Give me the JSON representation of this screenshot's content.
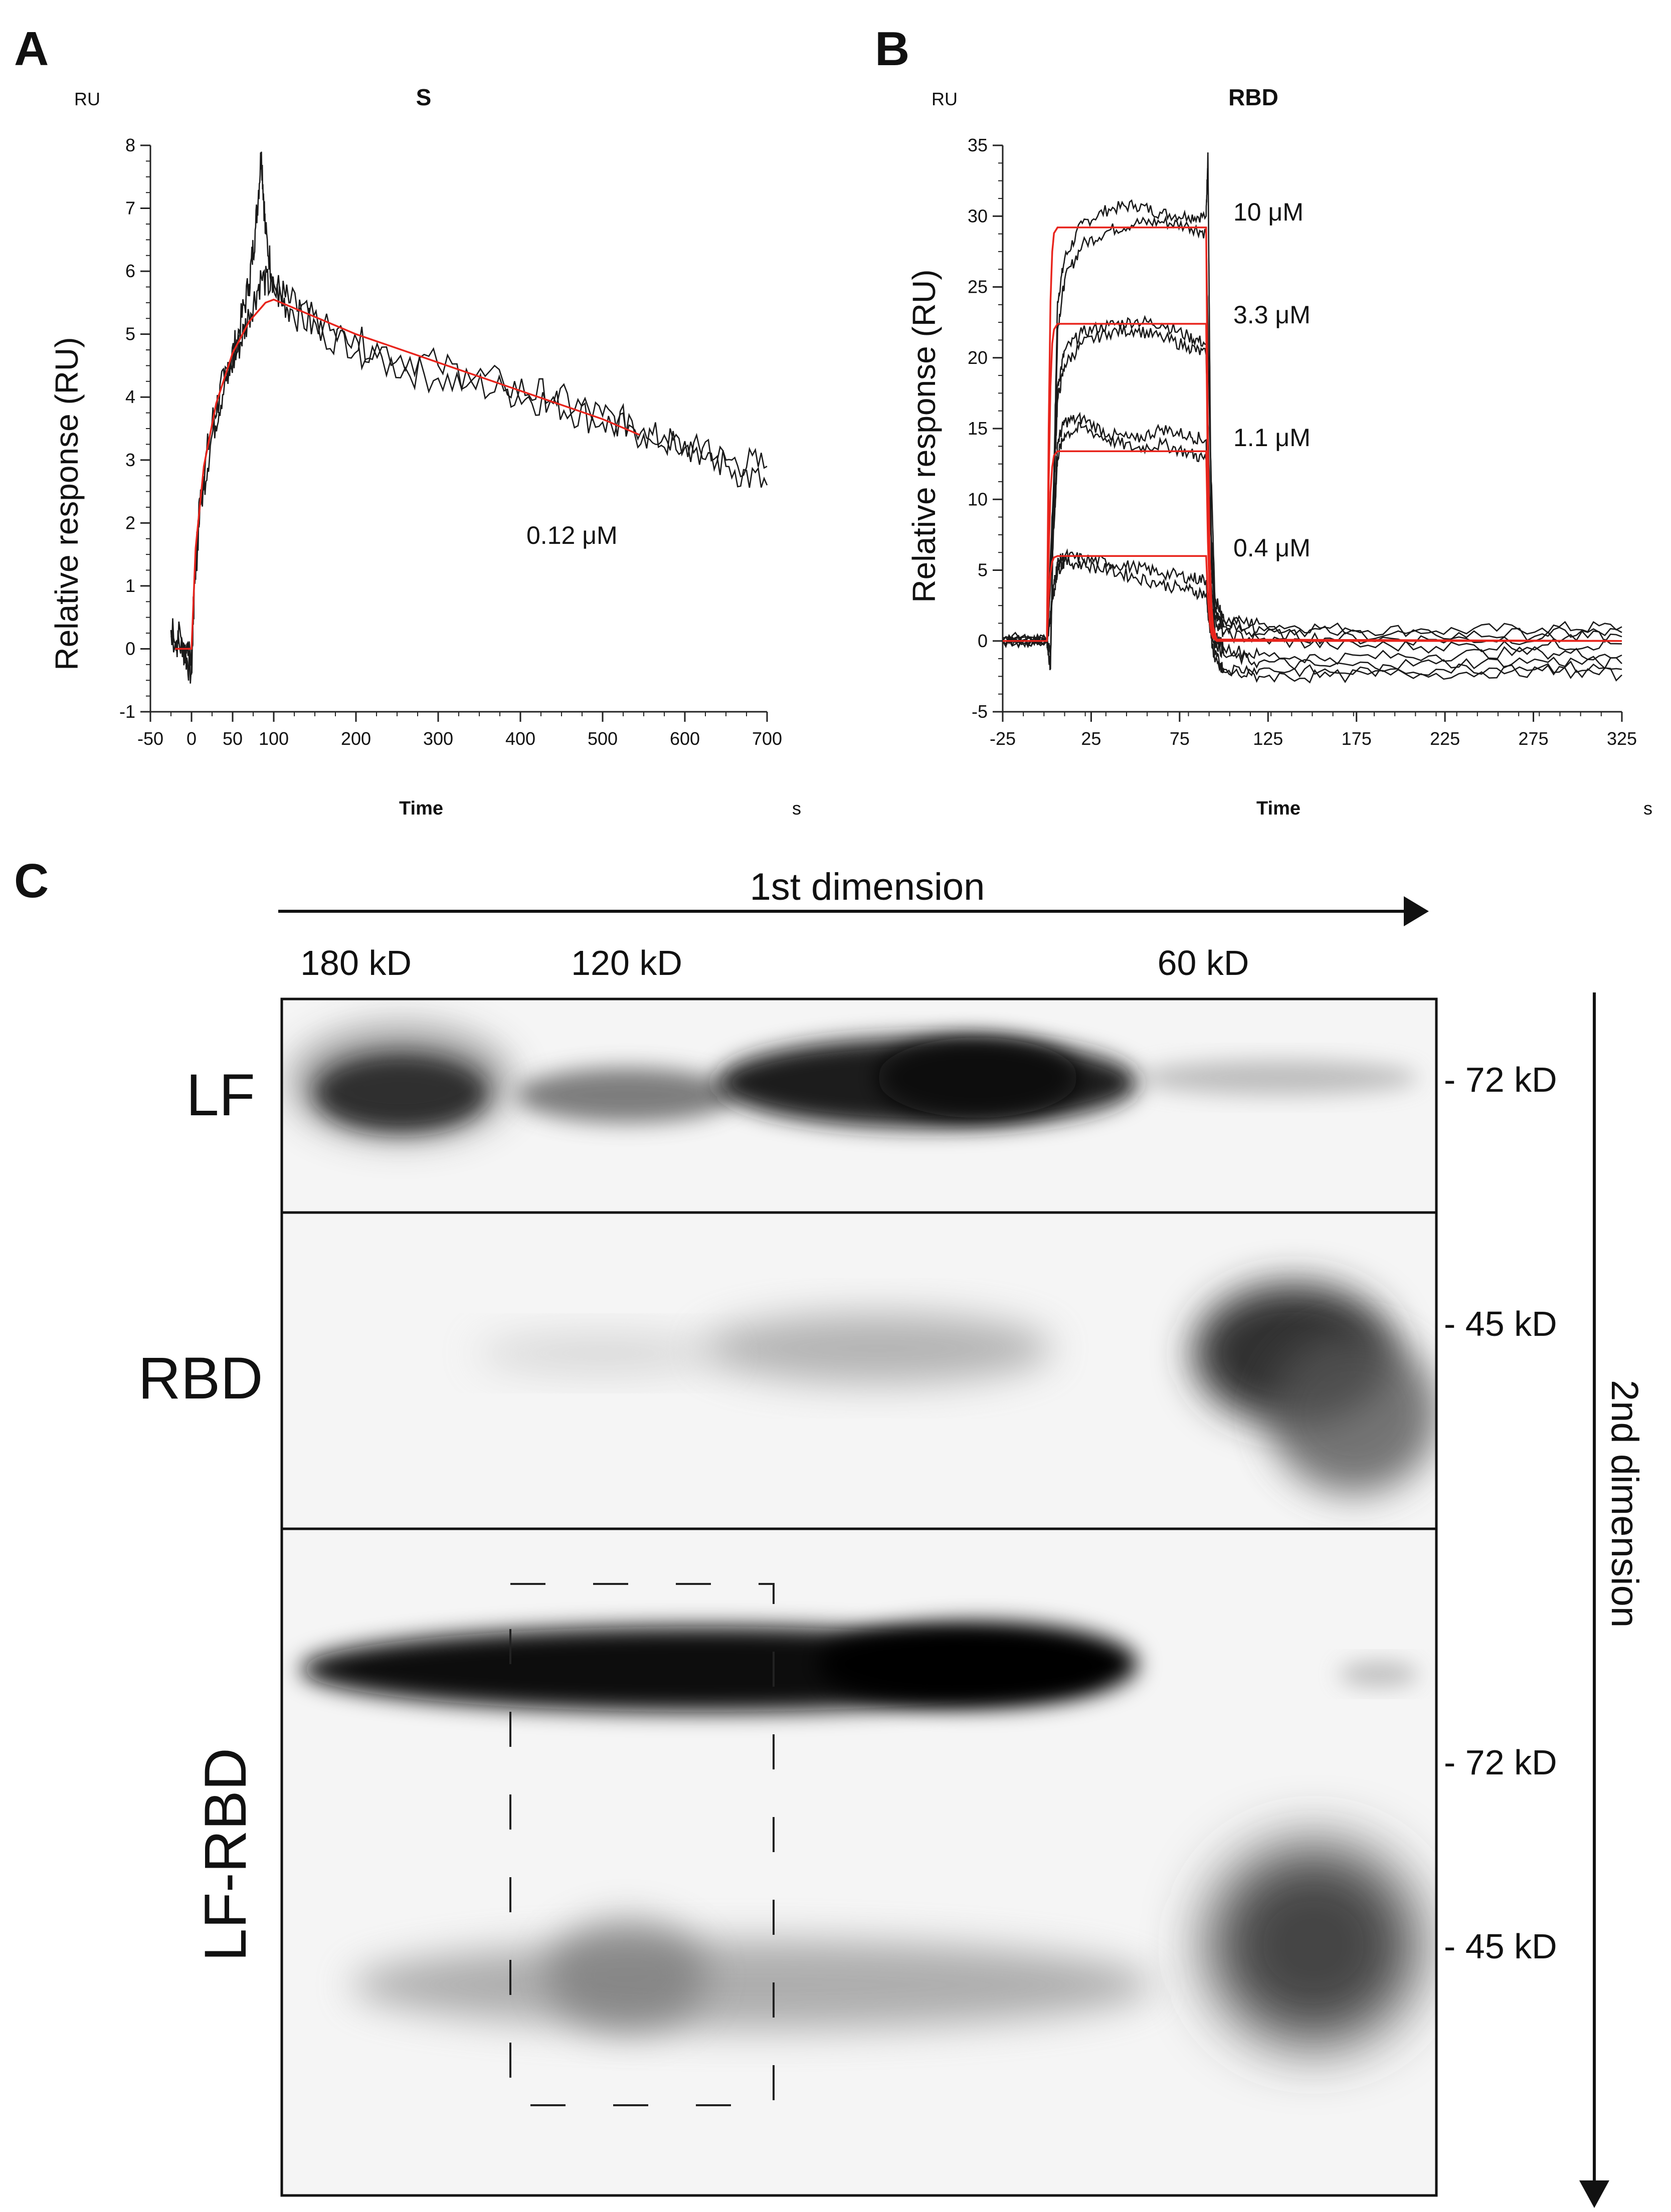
{
  "panels": {
    "a": {
      "letter": "A"
    },
    "b": {
      "letter": "B"
    },
    "c": {
      "letter": "C"
    }
  },
  "chart_data": [
    {
      "type": "line",
      "panel": "A",
      "title": "S",
      "y_unit": "RU",
      "x_unit": "s",
      "xlabel": "Time",
      "ylabel": "Relative response (RU)",
      "xlim": [
        -50,
        700
      ],
      "ylim": [
        -1,
        8
      ],
      "x_ticks": [
        -50,
        0,
        50,
        100,
        200,
        300,
        400,
        500,
        600,
        700
      ],
      "y_ticks": [
        -1,
        0,
        1,
        2,
        3,
        4,
        5,
        6,
        7,
        8
      ],
      "annotations": [
        {
          "text": "0.12 μM",
          "x": 380,
          "y": 1.8
        }
      ],
      "series": [
        {
          "name": "sensorgram 1",
          "color": "#1a1a1a",
          "x": [
            -25,
            -10,
            0,
            3,
            10,
            25,
            40,
            55,
            70,
            78,
            85,
            90,
            100,
            120,
            160,
            220,
            300,
            380,
            440,
            500,
            550,
            600,
            650,
            700
          ],
          "y": [
            0.2,
            0.0,
            -0.4,
            0.9,
            2.4,
            3.6,
            4.3,
            4.9,
            5.8,
            6.7,
            7.9,
            6.6,
            5.8,
            5.5,
            5.1,
            4.6,
            4.3,
            4.1,
            3.9,
            3.6,
            3.4,
            3.2,
            3.0,
            2.9
          ]
        },
        {
          "name": "sensorgram 2",
          "color": "#1a1a1a",
          "x": [
            -25,
            -10,
            0,
            3,
            10,
            25,
            40,
            55,
            70,
            85,
            100,
            120,
            160,
            220,
            300,
            380,
            440,
            500,
            550,
            600,
            650,
            700
          ],
          "y": [
            0.3,
            0.1,
            0.0,
            0.8,
            2.2,
            3.4,
            4.2,
            4.7,
            5.3,
            5.9,
            5.7,
            5.4,
            5.0,
            4.8,
            4.5,
            4.2,
            4.0,
            3.7,
            3.5,
            3.3,
            2.9,
            2.6
          ]
        },
        {
          "name": "fit",
          "color": "#e8241c",
          "x": [
            -20,
            0,
            5,
            15,
            30,
            50,
            70,
            90,
            100,
            200,
            300,
            400,
            500,
            545
          ],
          "y": [
            0.0,
            0.0,
            1.6,
            2.9,
            3.9,
            4.7,
            5.2,
            5.5,
            5.55,
            5.0,
            4.55,
            4.1,
            3.65,
            3.4
          ]
        }
      ]
    },
    {
      "type": "line",
      "panel": "B",
      "title": "RBD",
      "y_unit": "RU",
      "x_unit": "s",
      "xlabel": "Time",
      "ylabel": "Relative response (RU)",
      "xlim": [
        -25,
        325
      ],
      "ylim": [
        -5,
        35
      ],
      "x_ticks": [
        -25,
        25,
        75,
        125,
        175,
        225,
        275,
        325
      ],
      "y_ticks": [
        -5,
        0,
        5,
        10,
        15,
        20,
        25,
        30,
        35
      ],
      "annotations": [
        {
          "text": "10 μM",
          "x": 130,
          "y": 30
        },
        {
          "text": "3.3 μM",
          "x": 130,
          "y": 22.5
        },
        {
          "text": "1.1 μM",
          "x": 130,
          "y": 14
        },
        {
          "text": "0.4 μM",
          "x": 130,
          "y": 6
        }
      ],
      "series": [
        {
          "name": "10 μM a",
          "concentration": "10 μM",
          "color": "#1a1a1a",
          "x": [
            -25,
            0,
            2,
            4,
            6,
            10,
            20,
            35,
            50,
            65,
            80,
            90,
            91,
            92,
            93,
            95,
            100,
            120,
            160,
            220,
            280,
            325
          ],
          "y": [
            0,
            0,
            -2,
            12,
            24,
            27,
            29.5,
            30.5,
            30.8,
            30.2,
            30,
            30,
            34.5,
            20,
            5,
            2,
            1.5,
            1.2,
            0.9,
            0.7,
            0.9,
            1.0
          ]
        },
        {
          "name": "10 μM b",
          "concentration": "10 μM",
          "color": "#1a1a1a",
          "x": [
            -25,
            0,
            2,
            4,
            6,
            10,
            20,
            35,
            50,
            65,
            80,
            90,
            92,
            95,
            100,
            120,
            160,
            220,
            280,
            325
          ],
          "y": [
            0.2,
            0.1,
            -1,
            10,
            22,
            25.5,
            28,
            29,
            29.5,
            29.6,
            29.3,
            28.8,
            15,
            3,
            1.5,
            1.0,
            0.6,
            0.4,
            0.5,
            0.6
          ]
        },
        {
          "name": "3.3 μM a",
          "concentration": "3.3 μM",
          "color": "#1a1a1a",
          "x": [
            -25,
            0,
            4,
            6,
            10,
            20,
            35,
            50,
            65,
            80,
            90,
            92,
            95,
            100,
            120,
            160,
            220,
            280,
            325
          ],
          "y": [
            0,
            0,
            12,
            18,
            20.5,
            21.8,
            22.3,
            22.6,
            22.4,
            21.5,
            21,
            10,
            2,
            1.0,
            0.5,
            0.2,
            0.1,
            0.2,
            0.3
          ]
        },
        {
          "name": "3.3 μM b",
          "concentration": "3.3 μM",
          "color": "#1a1a1a",
          "x": [
            -25,
            0,
            4,
            6,
            10,
            20,
            35,
            50,
            65,
            80,
            90,
            92,
            95,
            100,
            120,
            160,
            220,
            280,
            325
          ],
          "y": [
            0,
            0,
            11,
            17,
            19.5,
            21,
            21.8,
            22,
            21.4,
            20.8,
            20.2,
            9,
            1.5,
            0.5,
            0.1,
            -0.3,
            -0.4,
            -0.3,
            -0.2
          ]
        },
        {
          "name": "1.1 μM a",
          "concentration": "1.1 μM",
          "color": "#1a1a1a",
          "x": [
            -25,
            0,
            4,
            6,
            10,
            20,
            35,
            50,
            65,
            80,
            90,
            92,
            95,
            100,
            120,
            160,
            220,
            280,
            325
          ],
          "y": [
            0,
            0,
            9,
            14,
            15.5,
            15.7,
            14.6,
            14.2,
            15.0,
            14.5,
            14.2,
            6,
            0.5,
            -0.5,
            -1.0,
            -1.2,
            -1.0,
            -0.8,
            -1.0
          ]
        },
        {
          "name": "1.1 μM b",
          "concentration": "1.1 μM",
          "color": "#1a1a1a",
          "x": [
            -25,
            0,
            4,
            6,
            10,
            20,
            35,
            50,
            65,
            80,
            90,
            92,
            95,
            100,
            120,
            160,
            220,
            280,
            325
          ],
          "y": [
            0,
            0,
            8,
            13,
            14.6,
            15.1,
            14.2,
            13.6,
            13.9,
            13.3,
            12.8,
            5,
            0.0,
            -1.0,
            -1.5,
            -1.8,
            -1.6,
            -1.4,
            -1.6
          ]
        },
        {
          "name": "0.4 μM a",
          "concentration": "0.4 μM",
          "color": "#1a1a1a",
          "x": [
            -25,
            0,
            4,
            6,
            10,
            20,
            35,
            50,
            65,
            80,
            90,
            92,
            95,
            100,
            120,
            160,
            220,
            280,
            325
          ],
          "y": [
            0,
            0,
            4,
            5.5,
            6.0,
            5.8,
            5.5,
            5.2,
            4.8,
            4.5,
            4.3,
            2,
            -1.0,
            -2.0,
            -2.0,
            -2.2,
            -2.0,
            -1.8,
            -2.0
          ]
        },
        {
          "name": "0.4 μM b",
          "concentration": "0.4 μM",
          "color": "#1a1a1a",
          "x": [
            -25,
            0,
            4,
            6,
            10,
            20,
            35,
            50,
            65,
            80,
            90,
            92,
            95,
            100,
            120,
            160,
            220,
            280,
            325
          ],
          "y": [
            0,
            0,
            3.5,
            5.0,
            5.6,
            5.4,
            5.0,
            4.5,
            4.0,
            3.6,
            3.3,
            1,
            -1.5,
            -2.2,
            -2.5,
            -2.5,
            -2.3,
            -2.1,
            -2.4
          ]
        },
        {
          "name": "fit 10 μM",
          "color": "#e8241c",
          "x": [
            -25,
            0,
            1,
            2,
            3,
            4,
            6,
            90,
            91,
            92,
            93,
            94,
            96,
            325
          ],
          "y": [
            0,
            0,
            15,
            24,
            27.5,
            28.8,
            29.2,
            29.2,
            14,
            6,
            2.5,
            1,
            0.1,
            0
          ]
        },
        {
          "name": "fit 3.3 μM",
          "color": "#e8241c",
          "x": [
            -25,
            0,
            1,
            2,
            3,
            4,
            6,
            90,
            91,
            92,
            93,
            94,
            96,
            325
          ],
          "y": [
            0,
            0,
            11,
            18,
            21,
            22,
            22.4,
            22.4,
            11,
            5,
            2,
            0.8,
            0.1,
            0
          ]
        },
        {
          "name": "fit 1.1 μM",
          "color": "#e8241c",
          "x": [
            -25,
            0,
            1,
            2,
            3,
            4,
            6,
            90,
            91,
            92,
            93,
            94,
            96,
            325
          ],
          "y": [
            0,
            0,
            6,
            10.5,
            12.3,
            13.1,
            13.4,
            13.4,
            7,
            3,
            1.2,
            0.4,
            0.05,
            0
          ]
        },
        {
          "name": "fit 0.4 μM",
          "color": "#e8241c",
          "x": [
            -25,
            0,
            1,
            2,
            3,
            4,
            6,
            90,
            91,
            92,
            93,
            94,
            96,
            325
          ],
          "y": [
            0,
            0,
            3,
            4.8,
            5.6,
            5.9,
            6.0,
            6.0,
            3,
            1.3,
            0.5,
            0.2,
            0.0,
            0
          ]
        }
      ]
    }
  ],
  "gel": {
    "first_dimension": "1st dimension",
    "second_dimension": "2nd dimension",
    "top_markers": [
      "180 kD",
      "120 kD",
      "60 kD"
    ],
    "rows": [
      {
        "label": "LF",
        "markers": [
          "- 72 kD"
        ]
      },
      {
        "label": "RBD",
        "markers": [
          "- 45 kD"
        ]
      },
      {
        "label": "LF-RBD",
        "markers": [
          "- 72 kD",
          "- 45 kD"
        ]
      }
    ]
  }
}
